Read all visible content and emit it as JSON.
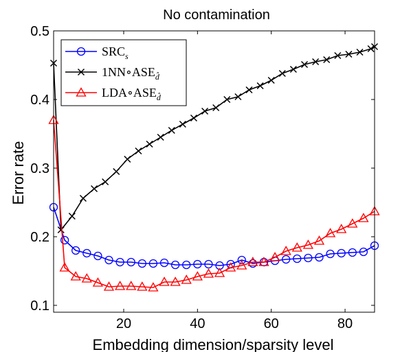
{
  "chart_data": {
    "type": "line",
    "title": "No contamination",
    "xlabel": "Embedding dimension/sparsity level",
    "ylabel": "Error rate",
    "xlim": [
      1,
      88
    ],
    "ylim": [
      0.09,
      0.5
    ],
    "xticks": [
      20,
      40,
      60,
      80
    ],
    "yticks": [
      0.1,
      0.2,
      0.3,
      0.4,
      0.5
    ],
    "grid": false,
    "legend_position": "top-left",
    "series": [
      {
        "name": "SRC",
        "name_sub": "s",
        "color": "#0000ff",
        "marker": "circle",
        "x": [
          1,
          4,
          7,
          10,
          13,
          16,
          19,
          22,
          25,
          28,
          31,
          34,
          37,
          40,
          43,
          46,
          49,
          52,
          55,
          58,
          61,
          64,
          67,
          70,
          73,
          76,
          79,
          82,
          85,
          88
        ],
        "y": [
          0.243,
          0.195,
          0.18,
          0.176,
          0.172,
          0.166,
          0.163,
          0.163,
          0.161,
          0.161,
          0.162,
          0.159,
          0.159,
          0.16,
          0.16,
          0.158,
          0.16,
          0.166,
          0.161,
          0.163,
          0.165,
          0.167,
          0.168,
          0.169,
          0.17,
          0.175,
          0.176,
          0.177,
          0.178,
          0.187
        ]
      },
      {
        "name": "1NN∘ASE",
        "name_sub": "d̂",
        "color": "#000000",
        "marker": "x",
        "x": [
          1,
          3,
          6,
          9,
          12,
          15,
          18,
          21,
          24,
          27,
          30,
          33,
          36,
          39,
          42,
          45,
          48,
          51,
          54,
          57,
          60,
          63,
          66,
          69,
          72,
          75,
          78,
          81,
          84,
          87,
          88
        ],
        "y": [
          0.453,
          0.21,
          0.23,
          0.256,
          0.27,
          0.28,
          0.295,
          0.313,
          0.325,
          0.335,
          0.345,
          0.355,
          0.364,
          0.373,
          0.383,
          0.388,
          0.4,
          0.404,
          0.414,
          0.42,
          0.428,
          0.438,
          0.444,
          0.451,
          0.455,
          0.458,
          0.464,
          0.466,
          0.469,
          0.474,
          0.477
        ]
      },
      {
        "name": "LDA∘ASE",
        "name_sub": "d̂",
        "color": "#ff0000",
        "marker": "triangle",
        "x": [
          1,
          4,
          7,
          10,
          13,
          16,
          19,
          22,
          25,
          28,
          31,
          34,
          37,
          40,
          43,
          46,
          49,
          52,
          55,
          58,
          61,
          64,
          67,
          70,
          73,
          76,
          79,
          82,
          85,
          88
        ],
        "y": [
          0.37,
          0.155,
          0.142,
          0.139,
          0.133,
          0.127,
          0.128,
          0.128,
          0.127,
          0.126,
          0.134,
          0.134,
          0.137,
          0.142,
          0.146,
          0.147,
          0.155,
          0.158,
          0.163,
          0.163,
          0.17,
          0.179,
          0.184,
          0.188,
          0.194,
          0.205,
          0.211,
          0.219,
          0.227,
          0.237
        ]
      }
    ]
  }
}
